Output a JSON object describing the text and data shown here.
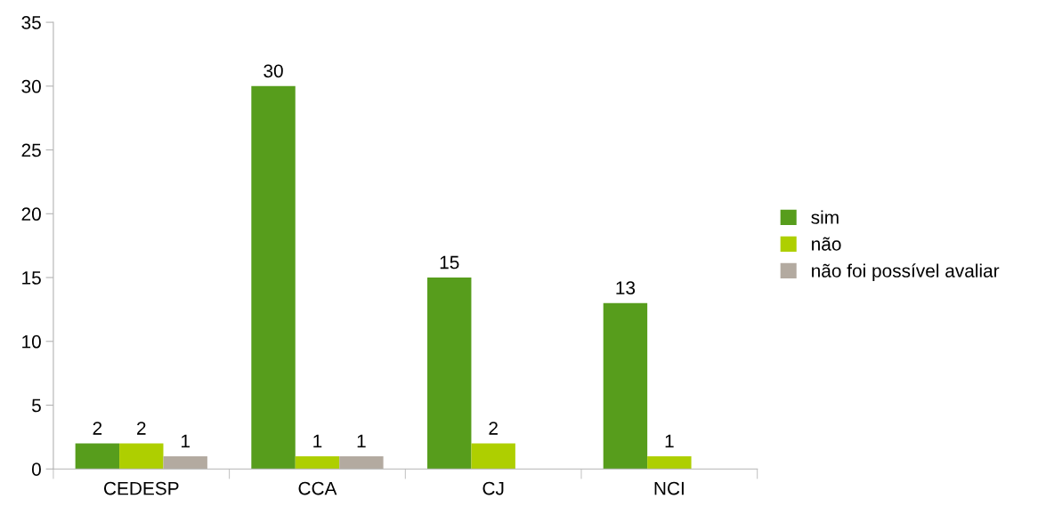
{
  "chart_data": {
    "type": "bar",
    "categories": [
      "CEDESP",
      "CCA",
      "CJ",
      "NCI"
    ],
    "series": [
      {
        "name": "sim",
        "color": "#579d1c",
        "values": [
          2,
          30,
          15,
          13
        ]
      },
      {
        "name": "não",
        "color": "#aecf00",
        "values": [
          2,
          1,
          2,
          1
        ]
      },
      {
        "name": "não foi possível avaliar",
        "color": "#b3aaa0",
        "values": [
          1,
          1,
          null,
          null
        ]
      }
    ],
    "ylim": [
      0,
      35
    ],
    "yticks": [
      0,
      5,
      10,
      15,
      20,
      25,
      30,
      35
    ],
    "grid": false,
    "legend": "right",
    "data_labels": true
  }
}
